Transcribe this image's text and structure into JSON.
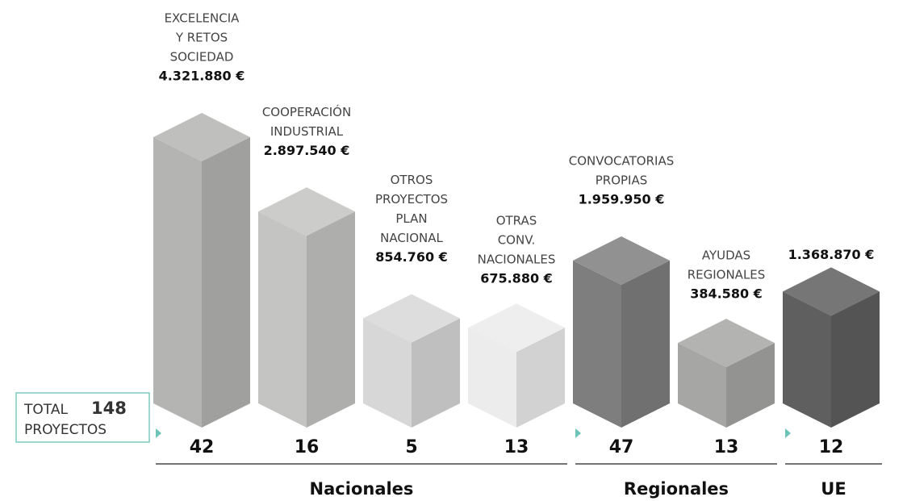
{
  "chart_data": {
    "type": "bar3d",
    "categories": [
      [
        "EXCELENCIA",
        "Y RETOS",
        "SOCIEDAD"
      ],
      [
        "COOPERACIÓN",
        "INDUSTRIAL"
      ],
      [
        "OTROS",
        "PROYECTOS",
        "PLAN",
        "NACIONAL"
      ],
      [
        "OTRAS",
        "CONV.",
        "NACIONALES"
      ],
      [
        "CONVOCATORIAS",
        "PROPIAS"
      ],
      [
        "AYUDAS",
        "REGIONALES"
      ],
      null
    ],
    "values": [
      4321880,
      2897540,
      854760,
      675880,
      1959950,
      384580,
      1368870
    ],
    "value_labels": [
      "4.321.880 €",
      "2.897.540 €",
      "854.760 €",
      "675.880 €",
      "1.959.950 €",
      "384.580 €",
      "1.368.870 €"
    ],
    "projects": [
      42,
      16,
      5,
      13,
      47,
      13,
      12
    ],
    "groups": [
      "Nacionales",
      "Nacionales",
      "Nacionales",
      "Nacionales",
      "Regionales",
      "Regionales",
      "UE"
    ],
    "colors": [
      "#b4b4b2",
      "#c4c4c2",
      "#d7d7d7",
      "#ececec",
      "#7e7e7e",
      "#a6a6a4",
      "#5f5f5f"
    ],
    "total": {
      "label": "TOTAL",
      "value": 148,
      "unit": "PROYECTOS"
    }
  }
}
